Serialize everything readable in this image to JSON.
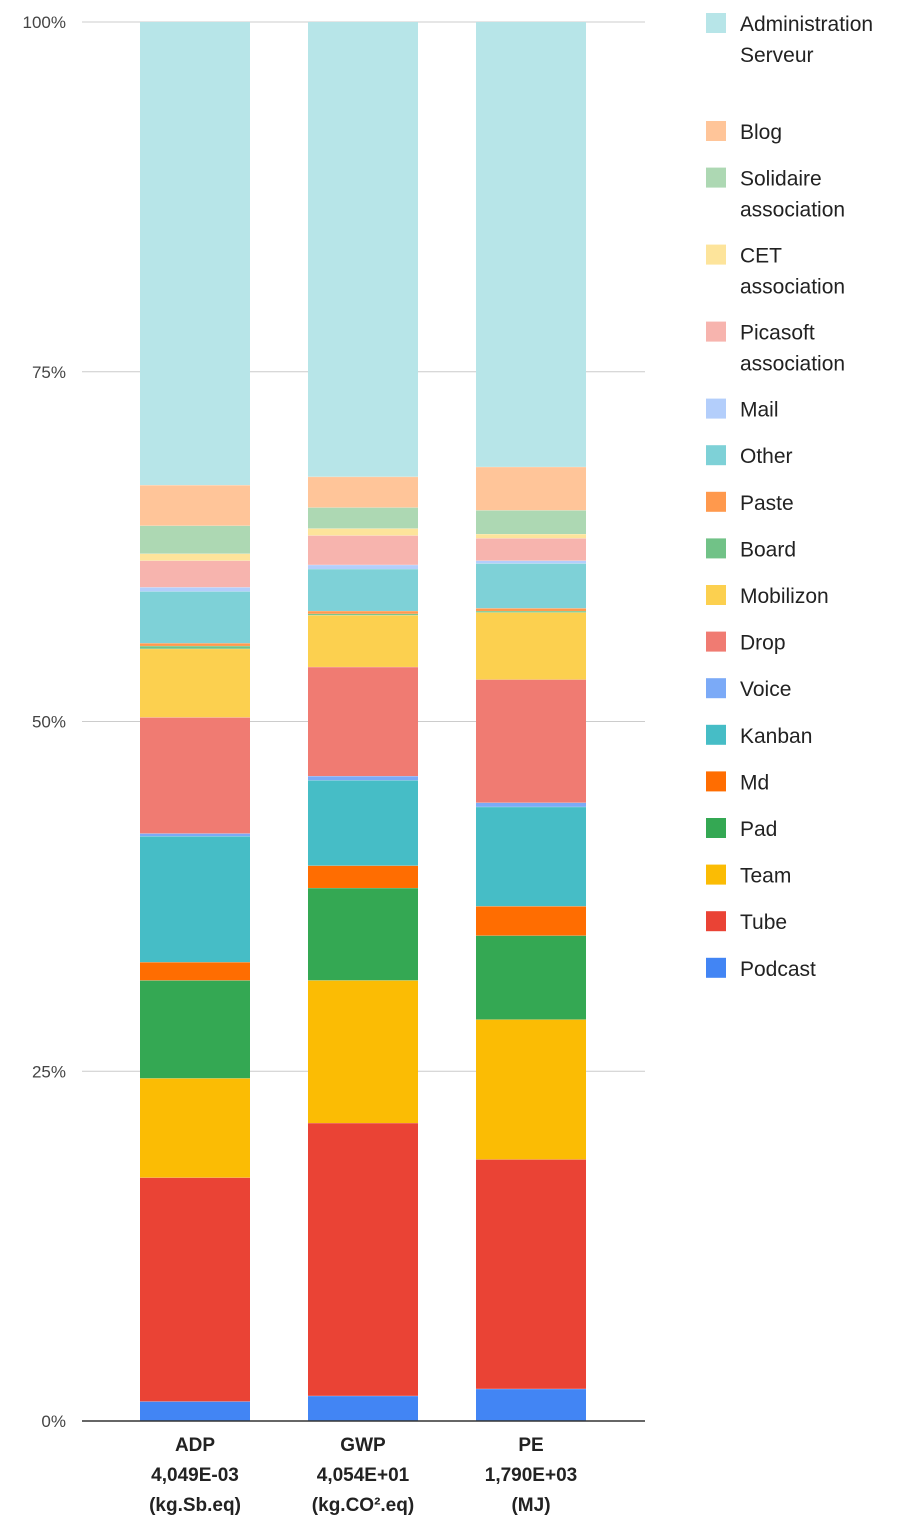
{
  "chart_data": {
    "type": "bar",
    "stacked": "percent",
    "title": "",
    "xlabel": "",
    "ylabel": "",
    "ylim": [
      0,
      100
    ],
    "yticks": [
      "0%",
      "25%",
      "50%",
      "75%",
      "100%"
    ],
    "grid": true,
    "legend_position": "right",
    "categories": [
      [
        "ADP",
        "4,049E-03",
        "(kg.Sb.eq)"
      ],
      [
        "GWP",
        "4,054E+01",
        "(kg.CO².eq)"
      ],
      [
        "PE",
        "1,790E+03",
        "(MJ)"
      ]
    ],
    "series": [
      {
        "name": "Podcast",
        "color": "#4285f4",
        "values": [
          1.4,
          1.8,
          2.3
        ]
      },
      {
        "name": "Tube",
        "color": "#ea4335",
        "values": [
          16.0,
          19.5,
          16.4
        ]
      },
      {
        "name": "Team",
        "color": "#fbbc04",
        "values": [
          7.1,
          10.2,
          10.0
        ]
      },
      {
        "name": "Pad",
        "color": "#34a853",
        "values": [
          7.0,
          6.6,
          6.0
        ]
      },
      {
        "name": "Md",
        "color": "#ff6d01",
        "values": [
          1.3,
          1.6,
          2.1
        ]
      },
      {
        "name": "Kanban",
        "color": "#46bdc6",
        "values": [
          9.0,
          6.1,
          7.1
        ]
      },
      {
        "name": "Voice",
        "color": "#7baaf7",
        "values": [
          0.2,
          0.3,
          0.3
        ]
      },
      {
        "name": "Drop",
        "color": "#f07b72",
        "values": [
          8.3,
          7.8,
          8.8
        ]
      },
      {
        "name": "Mobilizon",
        "color": "#fcd04f",
        "values": [
          4.9,
          3.7,
          4.8
        ]
      },
      {
        "name": "Board",
        "color": "#71c287",
        "values": [
          0.2,
          0.1,
          0.1
        ]
      },
      {
        "name": "Paste",
        "color": "#ff994d",
        "values": [
          0.2,
          0.2,
          0.2
        ]
      },
      {
        "name": "Other",
        "color": "#7ed1d7",
        "values": [
          3.7,
          3.0,
          3.2
        ]
      },
      {
        "name": "Mail",
        "color": "#b3cefb",
        "values": [
          0.3,
          0.3,
          0.2
        ]
      },
      {
        "name": "Picasoft association",
        "color": "#f7b4ae",
        "values": [
          1.9,
          2.1,
          1.6
        ]
      },
      {
        "name": "CET association",
        "color": "#fde49b",
        "values": [
          0.5,
          0.5,
          0.3
        ]
      },
      {
        "name": "Solidaire association",
        "color": "#add8b3",
        "values": [
          2.0,
          1.5,
          1.7
        ]
      },
      {
        "name": "Blog",
        "color": "#ffc599",
        "values": [
          2.9,
          2.2,
          3.1
        ]
      },
      {
        "name": "Administration Serveur",
        "color": "#b7e5e8",
        "values": [
          33.1,
          32.5,
          31.8
        ]
      }
    ]
  }
}
